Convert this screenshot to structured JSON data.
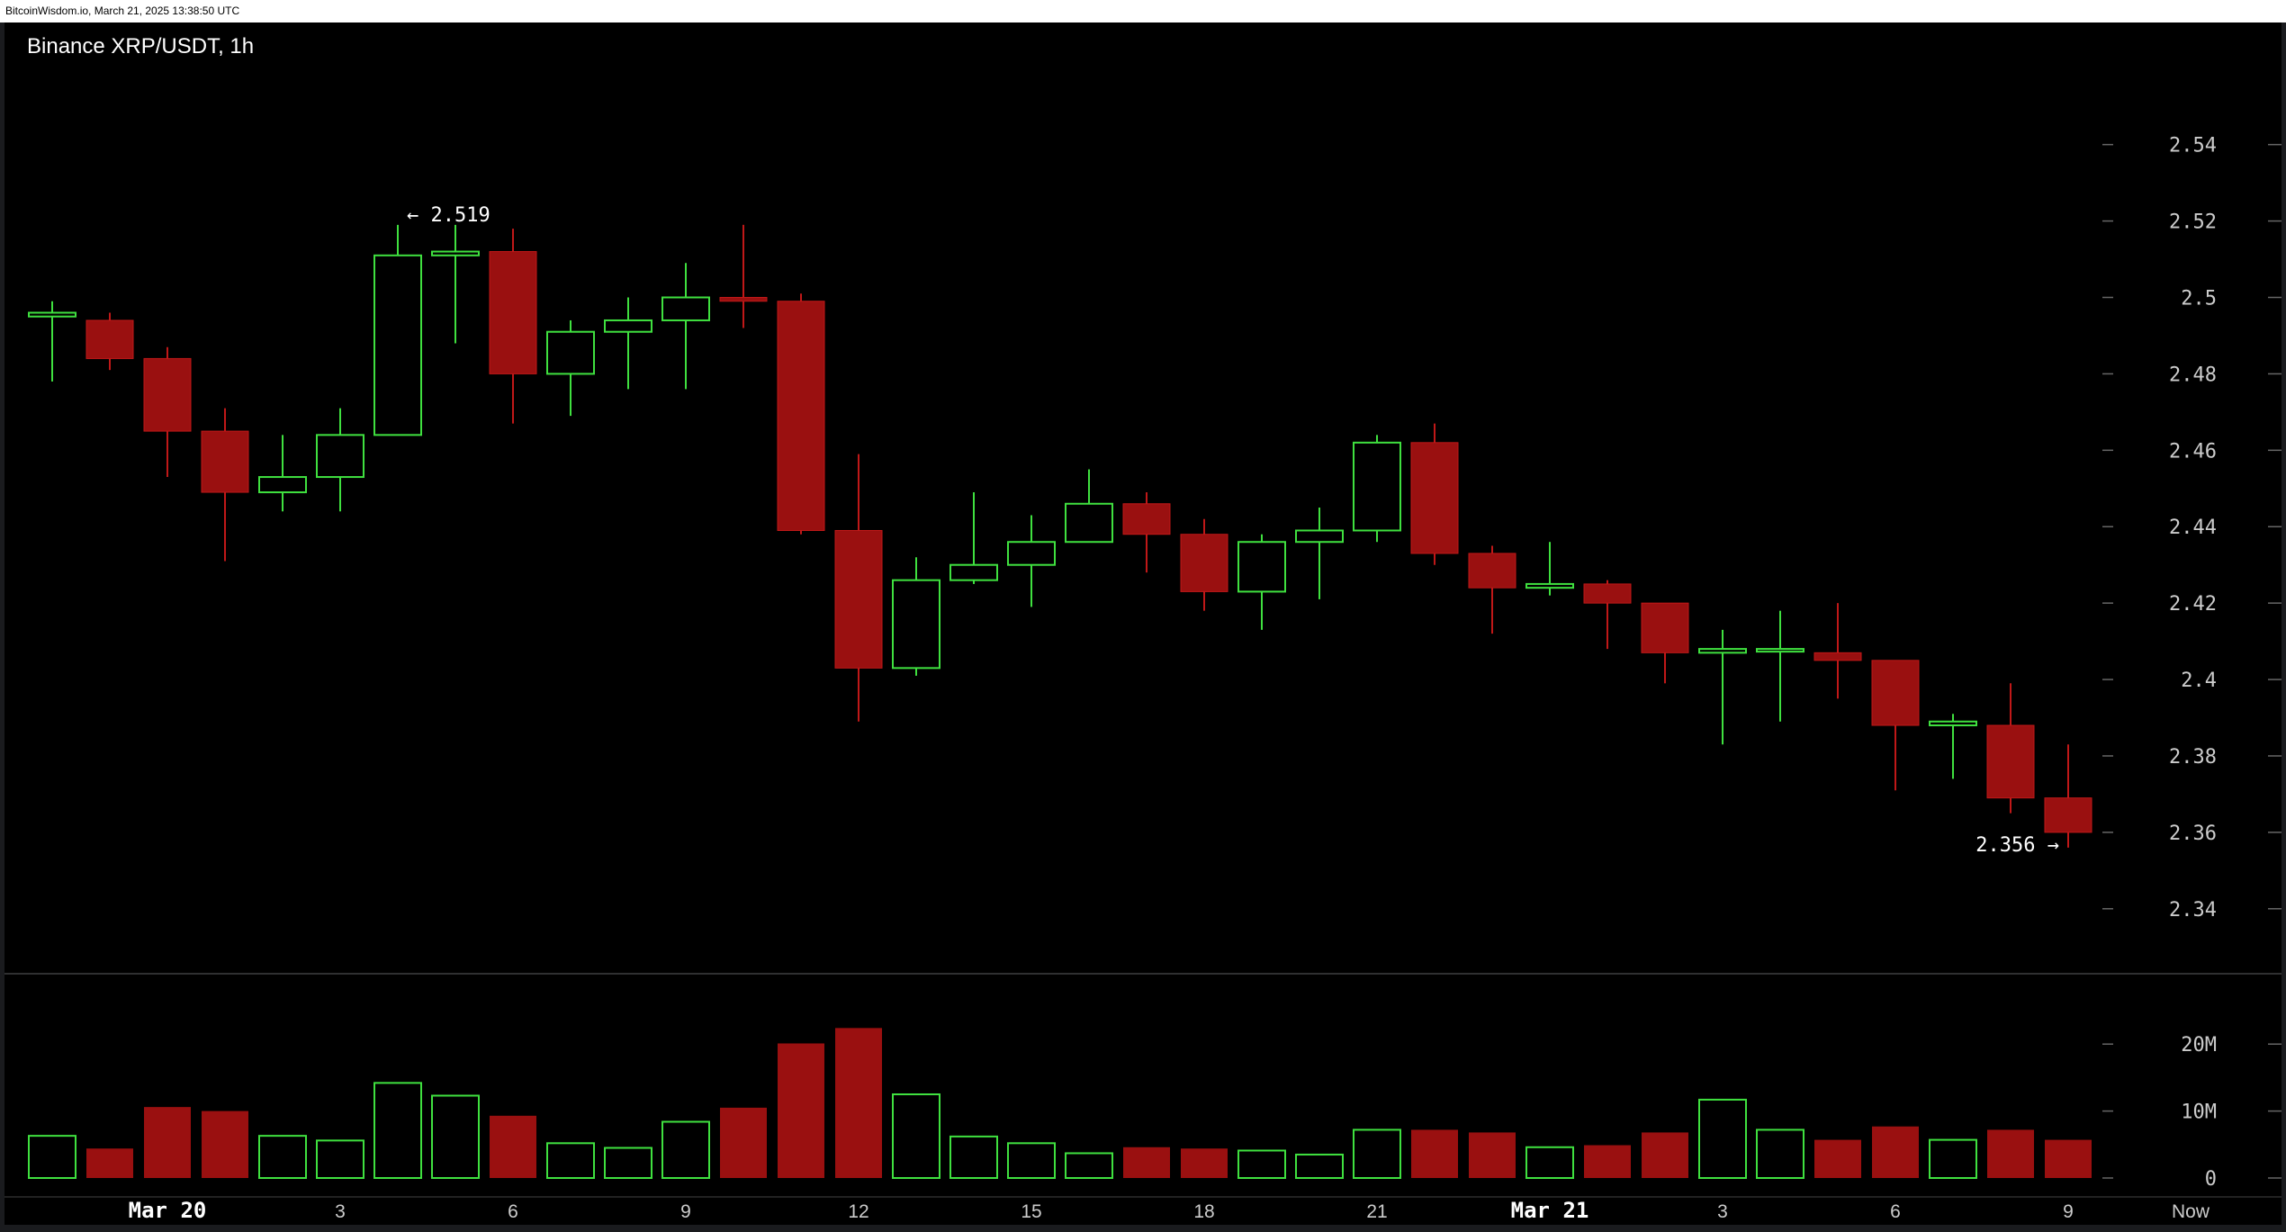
{
  "header": {
    "source_line": "BitcoinWisdom.io, March 21, 2025 13:38:50 UTC",
    "chart_title": "Binance XRP/USDT, 1h"
  },
  "colors": {
    "up": "#3fe03f",
    "down": "#9a1010",
    "background": "#000000",
    "frame": "#1a1b1e",
    "text": "#ffffff",
    "axis_text": "#cccccc"
  },
  "chart_data": {
    "type": "candlestick",
    "price_axis": {
      "ylim": [
        2.327,
        2.559
      ],
      "ticks": [
        "2.34",
        "2.36",
        "2.38",
        "2.4",
        "2.42",
        "2.44",
        "2.46",
        "2.48",
        "2.5",
        "2.52",
        "2.54"
      ]
    },
    "volume_axis": {
      "ylim": [
        0,
        25
      ],
      "ticks": [
        "0",
        "10M",
        "20M"
      ]
    },
    "x_ticks": [
      "Mar 20",
      "3",
      "6",
      "9",
      "12",
      "15",
      "18",
      "21",
      "Mar 21",
      "3",
      "6",
      "9",
      "Now"
    ],
    "annotations": {
      "high_label": "← 2.519",
      "low_label": "2.356 →"
    },
    "candles": [
      {
        "o": 2.495,
        "h": 2.499,
        "l": 2.478,
        "c": 2.496,
        "v": 6.3
      },
      {
        "o": 2.494,
        "h": 2.496,
        "l": 2.481,
        "c": 2.484,
        "v": 4.4
      },
      {
        "o": 2.484,
        "h": 2.487,
        "l": 2.453,
        "c": 2.465,
        "v": 10.6
      },
      {
        "o": 2.465,
        "h": 2.471,
        "l": 2.431,
        "c": 2.449,
        "v": 10.0
      },
      {
        "o": 2.449,
        "h": 2.464,
        "l": 2.444,
        "c": 2.453,
        "v": 6.3
      },
      {
        "o": 2.453,
        "h": 2.471,
        "l": 2.444,
        "c": 2.464,
        "v": 5.6
      },
      {
        "o": 2.464,
        "h": 2.519,
        "l": 2.464,
        "c": 2.511,
        "v": 14.2
      },
      {
        "o": 2.511,
        "h": 2.519,
        "l": 2.488,
        "c": 2.512,
        "v": 12.3
      },
      {
        "o": 2.512,
        "h": 2.518,
        "l": 2.467,
        "c": 2.48,
        "v": 9.3
      },
      {
        "o": 2.48,
        "h": 2.494,
        "l": 2.469,
        "c": 2.491,
        "v": 5.2
      },
      {
        "o": 2.491,
        "h": 2.5,
        "l": 2.476,
        "c": 2.494,
        "v": 4.5
      },
      {
        "o": 2.494,
        "h": 2.509,
        "l": 2.476,
        "c": 2.5,
        "v": 8.4
      },
      {
        "o": 2.5,
        "h": 2.519,
        "l": 2.492,
        "c": 2.499,
        "v": 10.5
      },
      {
        "o": 2.499,
        "h": 2.501,
        "l": 2.438,
        "c": 2.439,
        "v": 20.1
      },
      {
        "o": 2.439,
        "h": 2.459,
        "l": 2.389,
        "c": 2.403,
        "v": 22.4
      },
      {
        "o": 2.403,
        "h": 2.432,
        "l": 2.401,
        "c": 2.426,
        "v": 12.5
      },
      {
        "o": 2.426,
        "h": 2.449,
        "l": 2.425,
        "c": 2.43,
        "v": 6.2
      },
      {
        "o": 2.43,
        "h": 2.443,
        "l": 2.419,
        "c": 2.436,
        "v": 5.2
      },
      {
        "o": 2.436,
        "h": 2.455,
        "l": 2.436,
        "c": 2.446,
        "v": 3.7
      },
      {
        "o": 2.446,
        "h": 2.449,
        "l": 2.428,
        "c": 2.438,
        "v": 4.6
      },
      {
        "o": 2.438,
        "h": 2.442,
        "l": 2.418,
        "c": 2.423,
        "v": 4.4
      },
      {
        "o": 2.423,
        "h": 2.438,
        "l": 2.413,
        "c": 2.436,
        "v": 4.1
      },
      {
        "o": 2.436,
        "h": 2.445,
        "l": 2.421,
        "c": 2.439,
        "v": 3.5
      },
      {
        "o": 2.439,
        "h": 2.464,
        "l": 2.436,
        "c": 2.462,
        "v": 7.2
      },
      {
        "o": 2.462,
        "h": 2.467,
        "l": 2.43,
        "c": 2.433,
        "v": 7.2
      },
      {
        "o": 2.433,
        "h": 2.435,
        "l": 2.412,
        "c": 2.424,
        "v": 6.8
      },
      {
        "o": 2.424,
        "h": 2.436,
        "l": 2.422,
        "c": 2.425,
        "v": 4.6
      },
      {
        "o": 2.425,
        "h": 2.426,
        "l": 2.408,
        "c": 2.42,
        "v": 4.9
      },
      {
        "o": 2.42,
        "h": 2.42,
        "l": 2.399,
        "c": 2.407,
        "v": 6.8
      },
      {
        "o": 2.407,
        "h": 2.413,
        "l": 2.383,
        "c": 2.408,
        "v": 11.7
      },
      {
        "o": 2.408,
        "h": 2.418,
        "l": 2.389,
        "c": 2.408,
        "v": 7.2
      },
      {
        "o": 2.407,
        "h": 2.42,
        "l": 2.395,
        "c": 2.405,
        "v": 5.7
      },
      {
        "o": 2.405,
        "h": 2.405,
        "l": 2.371,
        "c": 2.388,
        "v": 7.7
      },
      {
        "o": 2.388,
        "h": 2.391,
        "l": 2.374,
        "c": 2.389,
        "v": 5.7
      },
      {
        "o": 2.388,
        "h": 2.399,
        "l": 2.365,
        "c": 2.369,
        "v": 7.2
      },
      {
        "o": 2.369,
        "h": 2.383,
        "l": 2.356,
        "c": 2.36,
        "v": 5.7
      }
    ]
  }
}
